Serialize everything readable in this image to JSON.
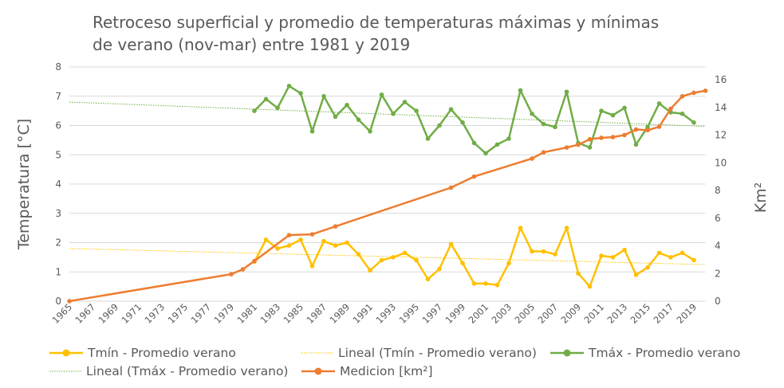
{
  "chart_data": {
    "type": "line",
    "title": "Retroceso superficial y promedio de temperaturas máximas y mínimas de verano (nov-mar) entre 1981 y 2019",
    "title_lines": [
      "Retroceso superficial y promedio de temperaturas máximas y mínimas",
      "de verano (nov-mar) entre 1981 y 2019"
    ],
    "ylabel": "Temperatura [°C]",
    "y2label": "Km²",
    "xlim": [
      1965,
      2020
    ],
    "ylim": [
      0,
      8
    ],
    "y2lim": [
      0,
      16
    ],
    "y_ticks": [
      "0",
      "1",
      "2",
      "3",
      "4",
      "5",
      "6",
      "7",
      "8"
    ],
    "y2_ticks": [
      "0",
      "2",
      "4",
      "6",
      "8",
      "10",
      "12",
      "14",
      "16"
    ],
    "x_ticks": [
      "1965",
      "1967",
      "1969",
      "1971",
      "1973",
      "1975",
      "1977",
      "1979",
      "1981",
      "1983",
      "1985",
      "1987",
      "1989",
      "1991",
      "1993",
      "1995",
      "1997",
      "1999",
      "2001",
      "2003",
      "2005",
      "2007",
      "2009",
      "2011",
      "2013",
      "2015",
      "2017",
      "2019"
    ],
    "grid": true,
    "legend_position": "bottom",
    "colors": {
      "tmin": "#FFC000",
      "tmax": "#70AD47",
      "medicion": "#ED7D31",
      "grid": "#D9D9D9"
    },
    "series": [
      {
        "name": "Tmín - Promedio verano",
        "axis": "left",
        "x": [
          1981,
          1982,
          1983,
          1984,
          1985,
          1986,
          1987,
          1988,
          1989,
          1990,
          1991,
          1992,
          1993,
          1994,
          1995,
          1996,
          1997,
          1998,
          1999,
          2000,
          2001,
          2002,
          2003,
          2004,
          2005,
          2006,
          2007,
          2008,
          2009,
          2010,
          2011,
          2012,
          2013,
          2014,
          2015,
          2016,
          2017,
          2018,
          2019
        ],
        "y": [
          1.35,
          2.1,
          1.8,
          1.9,
          2.1,
          1.2,
          2.05,
          1.9,
          2.0,
          1.6,
          1.05,
          1.4,
          1.5,
          1.65,
          1.4,
          0.75,
          1.1,
          1.95,
          1.3,
          0.6,
          0.6,
          0.55,
          1.3,
          2.5,
          1.7,
          1.7,
          1.6,
          2.5,
          0.95,
          0.5,
          1.55,
          1.5,
          1.75,
          0.9,
          1.15,
          1.65,
          1.5,
          1.65,
          1.4
        ]
      },
      {
        "name": "Lineal (Tmín - Promedio verano)",
        "axis": "left",
        "trendline": true,
        "x": [
          1965,
          2020
        ],
        "y": [
          1.8,
          1.25
        ]
      },
      {
        "name": "Tmáx - Promedio verano",
        "axis": "left",
        "x": [
          1981,
          1982,
          1983,
          1984,
          1985,
          1986,
          1987,
          1988,
          1989,
          1990,
          1991,
          1992,
          1993,
          1994,
          1995,
          1996,
          1997,
          1998,
          1999,
          2000,
          2001,
          2002,
          2003,
          2004,
          2005,
          2006,
          2007,
          2008,
          2009,
          2010,
          2011,
          2012,
          2013,
          2014,
          2015,
          2016,
          2017,
          2018,
          2019
        ],
        "y": [
          6.5,
          6.9,
          6.6,
          7.35,
          7.1,
          5.8,
          7.0,
          6.3,
          6.7,
          6.2,
          5.8,
          7.05,
          6.4,
          6.8,
          6.5,
          5.55,
          6.0,
          6.55,
          6.1,
          5.4,
          5.05,
          5.35,
          5.55,
          7.2,
          6.4,
          6.05,
          5.95,
          7.15,
          5.4,
          5.25,
          6.5,
          6.35,
          6.6,
          5.35,
          5.95,
          6.75,
          6.45,
          6.4,
          6.1
        ]
      },
      {
        "name": "Lineal (Tmáx - Promedio verano)",
        "axis": "left",
        "trendline": true,
        "x": [
          1965,
          2020
        ],
        "y": [
          6.8,
          5.97
        ]
      },
      {
        "name": "Medicion [km²]",
        "axis": "right",
        "x": [
          1965,
          1979,
          1980,
          1981,
          1984,
          1986,
          1988,
          1998,
          2000,
          2005,
          2006,
          2008,
          2009,
          2010,
          2011,
          2012,
          2013,
          2014,
          2015,
          2016,
          2017,
          2018,
          2019,
          2020
        ],
        "y": [
          0,
          1.95,
          2.3,
          2.9,
          4.77,
          4.83,
          5.4,
          8.2,
          9.0,
          10.3,
          10.75,
          11.1,
          11.3,
          11.7,
          11.8,
          11.85,
          12.0,
          12.4,
          12.35,
          12.6,
          13.9,
          14.8,
          15.05,
          15.2
        ]
      }
    ]
  }
}
